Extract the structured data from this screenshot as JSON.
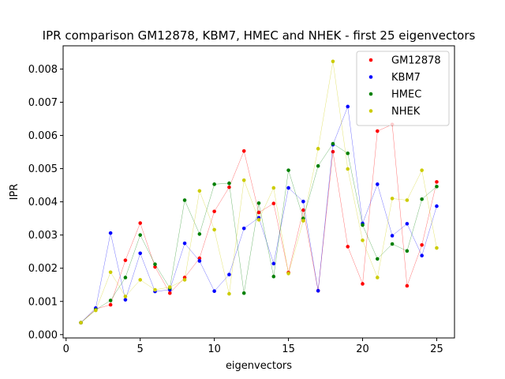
{
  "chart_data": {
    "type": "scatter",
    "title": "IPR comparison GM12878, KBM7, HMEC and NHEK - first 25 eigenvectors",
    "xlabel": "eigenvectors",
    "ylabel": "IPR",
    "xlim": [
      -0.2,
      26.2
    ],
    "ylim": [
      -0.0001,
      0.0087
    ],
    "xticks": [
      0,
      5,
      10,
      15,
      20,
      25
    ],
    "xtick_labels": [
      "0",
      "5",
      "10",
      "15",
      "20",
      "25"
    ],
    "yticks": [
      0.0,
      0.001,
      0.002,
      0.003,
      0.004,
      0.005,
      0.006,
      0.007,
      0.008
    ],
    "ytick_labels": [
      "0.000",
      "0.001",
      "0.002",
      "0.003",
      "0.004",
      "0.005",
      "0.006",
      "0.007",
      "0.008"
    ],
    "legend_position": "top-right",
    "grid": false,
    "x": [
      1,
      2,
      3,
      4,
      5,
      6,
      7,
      8,
      9,
      10,
      11,
      12,
      13,
      14,
      15,
      16,
      17,
      18,
      19,
      20,
      21,
      22,
      23,
      24,
      25
    ],
    "series": [
      {
        "name": "GM12878",
        "color": "#ff0000",
        "values": [
          0.00036,
          0.00077,
          0.0009,
          0.00224,
          0.00336,
          0.00204,
          0.00125,
          0.00172,
          0.0023,
          0.00371,
          0.00444,
          0.00553,
          0.00368,
          0.00395,
          0.00187,
          0.00375,
          0.00132,
          0.00551,
          0.00265,
          0.00153,
          0.00613,
          0.00633,
          0.00147,
          0.0027,
          0.0046
        ]
      },
      {
        "name": "KBM7",
        "color": "#0000ff",
        "values": [
          0.00036,
          0.0008,
          0.00306,
          0.00105,
          0.00245,
          0.0013,
          0.00135,
          0.00275,
          0.00222,
          0.00131,
          0.00181,
          0.0032,
          0.00352,
          0.00214,
          0.00442,
          0.00401,
          0.00132,
          0.00572,
          0.00687,
          0.00335,
          0.00453,
          0.00298,
          0.00334,
          0.00238,
          0.00387
        ]
      },
      {
        "name": "HMEC",
        "color": "#008000",
        "values": [
          0.00036,
          0.00075,
          0.00103,
          0.00172,
          0.003,
          0.00212,
          0.0014,
          0.00405,
          0.00303,
          0.00453,
          0.00456,
          0.00125,
          0.00396,
          0.00175,
          0.00495,
          0.0035,
          0.00508,
          0.00575,
          0.00546,
          0.0033,
          0.00228,
          0.00273,
          0.00252,
          0.00408,
          0.00446
        ]
      },
      {
        "name": "NHEK",
        "color": "#cccc00",
        "values": [
          0.00036,
          0.00073,
          0.00188,
          0.00115,
          0.00165,
          0.00135,
          0.00143,
          0.00165,
          0.00433,
          0.00316,
          0.00123,
          0.00465,
          0.00346,
          0.00442,
          0.00184,
          0.00343,
          0.0056,
          0.00823,
          0.00499,
          0.00284,
          0.00172,
          0.0041,
          0.00405,
          0.00495,
          0.00261
        ]
      }
    ]
  }
}
